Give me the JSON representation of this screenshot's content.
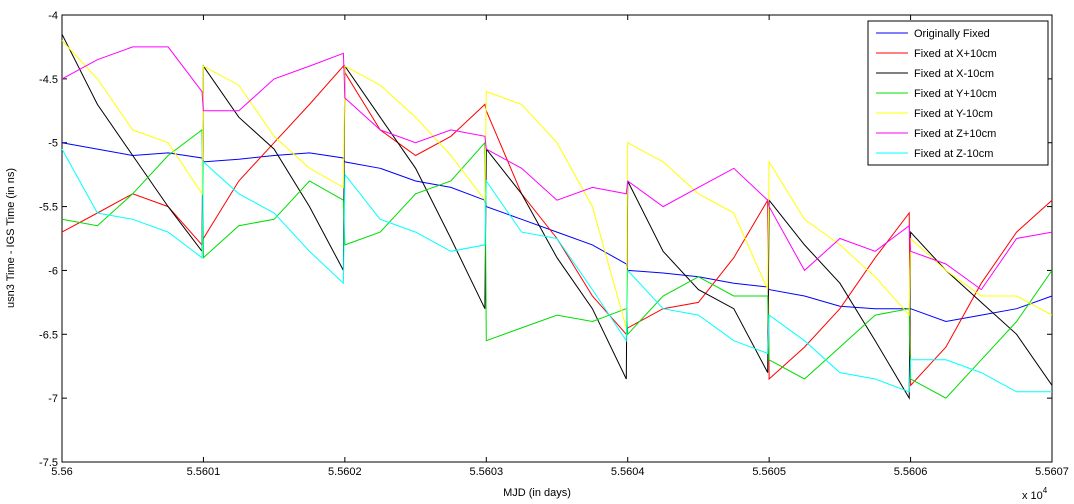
{
  "chart_data": {
    "type": "line",
    "x_label": "MJD (in days)",
    "y_label": "usn3 Time - IGS Time (in ns)",
    "axis_multiplier": {
      "base": "x 10",
      "exponent": "4"
    },
    "xlim": [
      5.56,
      5.5607
    ],
    "ylim": [
      -7.5,
      -4
    ],
    "xticks": [
      5.56,
      5.5601,
      5.5602,
      5.5603,
      5.5604,
      5.5605,
      5.5606,
      5.5607
    ],
    "yticks": [
      -7.5,
      -7,
      -6.5,
      -6,
      -5.5,
      -5,
      -4.5,
      -4
    ],
    "grid": false,
    "legend": "upper right",
    "x": [
      5.56,
      5.560025,
      5.56005,
      5.560075,
      5.560099,
      5.5601,
      5.560125,
      5.56015,
      5.560175,
      5.560199,
      5.5602,
      5.560225,
      5.56025,
      5.560275,
      5.560299,
      5.5603,
      5.560325,
      5.56035,
      5.560375,
      5.560399,
      5.5604,
      5.560425,
      5.56045,
      5.560475,
      5.560499,
      5.5605,
      5.560525,
      5.56055,
      5.560575,
      5.560599,
      5.5606,
      5.560625,
      5.56065,
      5.560675,
      5.5607
    ],
    "series": [
      {
        "name": "Originally Fixed",
        "color": "#0000ff",
        "values": [
          -5.0,
          -5.05,
          -5.1,
          -5.08,
          -5.12,
          -5.15,
          -5.13,
          -5.1,
          -5.08,
          -5.12,
          -5.15,
          -5.2,
          -5.3,
          -5.35,
          -5.45,
          -5.5,
          -5.6,
          -5.7,
          -5.8,
          -5.95,
          -6.0,
          -6.02,
          -6.05,
          -6.1,
          -6.13,
          -6.15,
          -6.2,
          -6.28,
          -6.3,
          -6.3,
          -6.3,
          -6.4,
          -6.35,
          -6.3,
          -6.2
        ]
      },
      {
        "name": "Fixed at X+10cm",
        "color": "#ff0000",
        "values": [
          -5.7,
          -5.55,
          -5.4,
          -5.5,
          -5.8,
          -5.75,
          -5.3,
          -5.0,
          -4.7,
          -4.4,
          -4.45,
          -4.9,
          -5.1,
          -4.95,
          -4.7,
          -4.75,
          -5.4,
          -5.75,
          -6.2,
          -6.5,
          -6.45,
          -6.3,
          -6.25,
          -5.9,
          -5.45,
          -6.85,
          -6.6,
          -6.3,
          -5.9,
          -5.55,
          -6.9,
          -6.6,
          -6.1,
          -5.7,
          -5.45
        ]
      },
      {
        "name": "Fixed at X-10cm",
        "color": "#000000",
        "values": [
          -4.15,
          -4.7,
          -5.1,
          -5.5,
          -5.85,
          -4.4,
          -4.8,
          -5.05,
          -5.5,
          -6.0,
          -4.4,
          -4.8,
          -5.2,
          -5.75,
          -6.3,
          -5.05,
          -5.4,
          -5.9,
          -6.3,
          -6.85,
          -5.3,
          -5.85,
          -6.15,
          -6.3,
          -6.8,
          -5.45,
          -5.8,
          -6.1,
          -6.55,
          -7.0,
          -5.7,
          -6.0,
          -6.25,
          -6.5,
          -6.9
        ]
      },
      {
        "name": "Fixed at Y+10cm",
        "color": "#00dd00",
        "values": [
          -5.6,
          -5.65,
          -5.4,
          -5.1,
          -4.9,
          -5.9,
          -5.65,
          -5.6,
          -5.3,
          -5.45,
          -5.8,
          -5.7,
          -5.4,
          -5.3,
          -5.0,
          -6.55,
          -6.45,
          -6.35,
          -6.4,
          -6.3,
          -6.5,
          -6.2,
          -6.05,
          -6.2,
          -6.2,
          -6.7,
          -6.85,
          -6.6,
          -6.35,
          -6.3,
          -6.85,
          -7.0,
          -6.7,
          -6.4,
          -6.0
        ]
      },
      {
        "name": "Fixed at Y-10cm",
        "color": "#ffff00",
        "values": [
          -4.2,
          -4.5,
          -4.9,
          -5.0,
          -5.4,
          -4.4,
          -4.55,
          -4.95,
          -5.2,
          -5.35,
          -4.4,
          -4.55,
          -4.8,
          -5.1,
          -5.45,
          -4.6,
          -4.7,
          -5.0,
          -5.5,
          -6.45,
          -5.0,
          -5.15,
          -5.4,
          -5.55,
          -6.15,
          -5.15,
          -5.6,
          -5.8,
          -6.05,
          -6.35,
          -5.75,
          -6.0,
          -6.2,
          -6.2,
          -6.35
        ]
      },
      {
        "name": "Fixed at Z+10cm",
        "color": "#ff00ff",
        "values": [
          -4.5,
          -4.35,
          -4.25,
          -4.25,
          -4.6,
          -4.75,
          -4.75,
          -4.5,
          -4.4,
          -4.3,
          -4.65,
          -4.9,
          -5.0,
          -4.9,
          -4.95,
          -5.05,
          -5.2,
          -5.45,
          -5.35,
          -5.4,
          -5.3,
          -5.5,
          -5.35,
          -5.2,
          -5.45,
          -5.5,
          -6.0,
          -5.75,
          -5.85,
          -5.65,
          -5.85,
          -5.95,
          -6.15,
          -5.75,
          -5.7
        ]
      },
      {
        "name": "Fixed at Z-10cm",
        "color": "#00ffff",
        "values": [
          -5.05,
          -5.55,
          -5.6,
          -5.7,
          -5.9,
          -5.15,
          -5.4,
          -5.55,
          -5.85,
          -6.1,
          -5.25,
          -5.6,
          -5.7,
          -5.85,
          -5.8,
          -5.3,
          -5.7,
          -5.75,
          -6.15,
          -6.55,
          -6.0,
          -6.3,
          -6.35,
          -6.55,
          -6.65,
          -6.35,
          -6.55,
          -6.8,
          -6.85,
          -6.95,
          -6.7,
          -6.7,
          -6.8,
          -6.95,
          -6.95
        ]
      }
    ]
  }
}
